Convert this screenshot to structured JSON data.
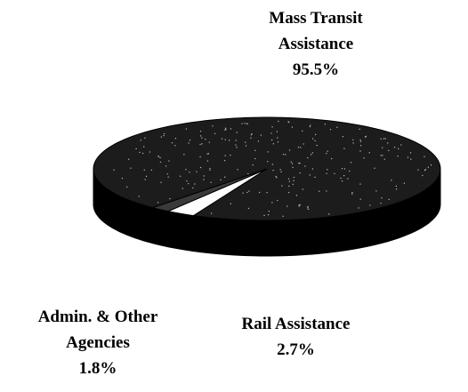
{
  "chart_data": {
    "type": "pie",
    "categories": [
      "Mass Transit Assistance",
      "Rail Assistance",
      "Admin. & Other Agencies"
    ],
    "values": [
      95.5,
      2.7,
      1.8
    ],
    "value_labels": [
      "95.5%",
      "2.7%",
      "1.8%"
    ],
    "colors": [
      "#1c1c1c",
      "#ffffff",
      "#3a3a3a"
    ],
    "3d": true
  }
}
